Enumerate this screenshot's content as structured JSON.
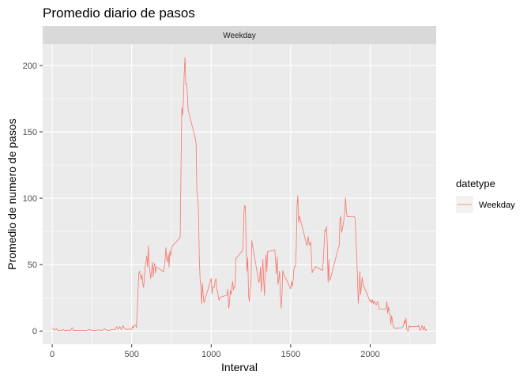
{
  "chart_data": {
    "type": "line",
    "title": "Promedio diario de pasos",
    "facet_label": "Weekday",
    "xlabel": "Interval",
    "ylabel": "Promedio de numero de pasos",
    "xlim": [
      -60,
      2415
    ],
    "ylim": [
      -10,
      216
    ],
    "x_ticks": [
      0,
      500,
      1000,
      1500,
      2000
    ],
    "y_ticks": [
      0,
      50,
      100,
      150,
      200
    ],
    "grid": true,
    "legend": {
      "title": "datetype",
      "position": "right",
      "entries": [
        "Weekday"
      ]
    },
    "series": [
      {
        "name": "Weekday",
        "color": "#F8766D",
        "points": [
          [
            0,
            2.3
          ],
          [
            15,
            0.4
          ],
          [
            25,
            1.8
          ],
          [
            35,
            0.2
          ],
          [
            45,
            0.6
          ],
          [
            60,
            0.5
          ],
          [
            70,
            1.0
          ],
          [
            80,
            0.2
          ],
          [
            100,
            0.6
          ],
          [
            115,
            0.4
          ],
          [
            125,
            2.5
          ],
          [
            135,
            0.3
          ],
          [
            150,
            0.5
          ],
          [
            170,
            0.4
          ],
          [
            190,
            0.6
          ],
          [
            210,
            0.2
          ],
          [
            230,
            1.1
          ],
          [
            250,
            0.6
          ],
          [
            270,
            0.3
          ],
          [
            290,
            0.8
          ],
          [
            310,
            0.4
          ],
          [
            330,
            1.6
          ],
          [
            345,
            0.6
          ],
          [
            360,
            0.4
          ],
          [
            380,
            1.2
          ],
          [
            395,
            0.8
          ],
          [
            405,
            3.2
          ],
          [
            415,
            1.4
          ],
          [
            425,
            3.4
          ],
          [
            435,
            1.0
          ],
          [
            445,
            4.0
          ],
          [
            455,
            2.0
          ],
          [
            470,
            0.9
          ],
          [
            485,
            1.5
          ],
          [
            500,
            1.1
          ],
          [
            505,
            3.5
          ],
          [
            510,
            2.3
          ],
          [
            515,
            4.5
          ],
          [
            525,
            4.2
          ],
          [
            530,
            2.6
          ],
          [
            540,
            30.6
          ],
          [
            545,
            43.4
          ],
          [
            550,
            45.0
          ],
          [
            555,
            41.5
          ],
          [
            560,
            38.8
          ],
          [
            565,
            42.5
          ],
          [
            570,
            35.2
          ],
          [
            575,
            32.9
          ],
          [
            580,
            40.5
          ],
          [
            585,
            48.8
          ],
          [
            590,
            52.4
          ],
          [
            595,
            56.6
          ],
          [
            600,
            48.1
          ],
          [
            605,
            64.2
          ],
          [
            610,
            49.6
          ],
          [
            615,
            44.5
          ],
          [
            620,
            39.4
          ],
          [
            625,
            45.1
          ],
          [
            630,
            52.0
          ],
          [
            635,
            40.7
          ],
          [
            640,
            48.3
          ],
          [
            645,
            51.0
          ],
          [
            650,
            43.6
          ],
          [
            655,
            48.2
          ],
          [
            700,
            44.7
          ],
          [
            705,
            48.0
          ],
          [
            710,
            53.7
          ],
          [
            715,
            62.8
          ],
          [
            720,
            54.4
          ],
          [
            725,
            51.8
          ],
          [
            730,
            58.1
          ],
          [
            735,
            48.2
          ],
          [
            740,
            60.2
          ],
          [
            745,
            56.4
          ],
          [
            750,
            61.6
          ],
          [
            755,
            64.0
          ],
          [
            800,
            69.8
          ],
          [
            805,
            70.8
          ],
          [
            810,
            120.9
          ],
          [
            815,
            168.0
          ],
          [
            820,
            162.6
          ],
          [
            825,
            173.0
          ],
          [
            830,
            193.1
          ],
          [
            835,
            206.1
          ],
          [
            840,
            186.0
          ],
          [
            845,
            186.4
          ],
          [
            850,
            178.9
          ],
          [
            855,
            166.4
          ],
          [
            900,
            145.2
          ],
          [
            905,
            141.1
          ],
          [
            910,
            104.7
          ],
          [
            915,
            100.8
          ],
          [
            920,
            91.6
          ],
          [
            925,
            56.0
          ],
          [
            930,
            39.4
          ],
          [
            935,
            33.1
          ],
          [
            940,
            20.6
          ],
          [
            945,
            36.1
          ],
          [
            950,
            26.6
          ],
          [
            955,
            21.4
          ],
          [
            1000,
            39.7
          ],
          [
            1005,
            27.7
          ],
          [
            1010,
            33.3
          ],
          [
            1015,
            32.7
          ],
          [
            1020,
            33.1
          ],
          [
            1025,
            38.1
          ],
          [
            1030,
            39.4
          ],
          [
            1035,
            31.0
          ],
          [
            1040,
            30.0
          ],
          [
            1045,
            25.4
          ],
          [
            1050,
            23.0
          ],
          [
            1055,
            25.3
          ],
          [
            1100,
            27.0
          ],
          [
            1105,
            31.4
          ],
          [
            1110,
            17.1
          ],
          [
            1115,
            20.8
          ],
          [
            1120,
            30.6
          ],
          [
            1125,
            27.5
          ],
          [
            1130,
            33.2
          ],
          [
            1135,
            37.3
          ],
          [
            1140,
            31.0
          ],
          [
            1145,
            33.4
          ],
          [
            1150,
            33.3
          ],
          [
            1155,
            54.5
          ],
          [
            1200,
            61.0
          ],
          [
            1205,
            88.2
          ],
          [
            1210,
            94.4
          ],
          [
            1215,
            93.3
          ],
          [
            1220,
            62.5
          ],
          [
            1225,
            45.1
          ],
          [
            1230,
            55.2
          ],
          [
            1235,
            26.4
          ],
          [
            1240,
            22.3
          ],
          [
            1245,
            30.1
          ],
          [
            1250,
            36.4
          ],
          [
            1255,
            68.1
          ],
          [
            1300,
            36.5
          ],
          [
            1305,
            38.9
          ],
          [
            1310,
            47.9
          ],
          [
            1315,
            29.5
          ],
          [
            1320,
            42.4
          ],
          [
            1325,
            54.1
          ],
          [
            1330,
            38.5
          ],
          [
            1335,
            26.7
          ],
          [
            1340,
            48.8
          ],
          [
            1345,
            57.6
          ],
          [
            1350,
            44.4
          ],
          [
            1355,
            59.8
          ],
          [
            1400,
            61.0
          ],
          [
            1405,
            52.5
          ],
          [
            1410,
            43.1
          ],
          [
            1415,
            55.7
          ],
          [
            1420,
            35.0
          ],
          [
            1425,
            39.0
          ],
          [
            1430,
            45.1
          ],
          [
            1435,
            27.7
          ],
          [
            1440,
            17.2
          ],
          [
            1445,
            26.4
          ],
          [
            1450,
            45.6
          ],
          [
            1455,
            43.1
          ],
          [
            1500,
            31.7
          ],
          [
            1505,
            37.5
          ],
          [
            1510,
            33.7
          ],
          [
            1515,
            37.8
          ],
          [
            1520,
            46.3
          ],
          [
            1525,
            48.7
          ],
          [
            1530,
            48.6
          ],
          [
            1535,
            62.5
          ],
          [
            1540,
            95.2
          ],
          [
            1545,
            101.9
          ],
          [
            1550,
            81.5
          ],
          [
            1555,
            86.7
          ],
          [
            1600,
            65.3
          ],
          [
            1605,
            64.5
          ],
          [
            1610,
            71.2
          ],
          [
            1615,
            66.1
          ],
          [
            1620,
            64.8
          ],
          [
            1625,
            67.2
          ],
          [
            1630,
            57.2
          ],
          [
            1635,
            43.8
          ],
          [
            1640,
            45.6
          ],
          [
            1645,
            45.8
          ],
          [
            1650,
            46.7
          ],
          [
            1655,
            48.5
          ],
          [
            1700,
            45.6
          ],
          [
            1705,
            52.7
          ],
          [
            1710,
            65.0
          ],
          [
            1715,
            76.2
          ],
          [
            1720,
            75.2
          ],
          [
            1725,
            78.6
          ],
          [
            1730,
            66.2
          ],
          [
            1735,
            36.6
          ],
          [
            1740,
            54.1
          ],
          [
            1745,
            38.0
          ],
          [
            1750,
            39.7
          ],
          [
            1755,
            41.5
          ],
          [
            1800,
            62.9
          ],
          [
            1805,
            63.9
          ],
          [
            1810,
            83.9
          ],
          [
            1815,
            86.4
          ],
          [
            1820,
            74.2
          ],
          [
            1825,
            76.7
          ],
          [
            1830,
            80.1
          ],
          [
            1835,
            84.4
          ],
          [
            1840,
            90.6
          ],
          [
            1845,
            100.5
          ],
          [
            1850,
            90.2
          ],
          [
            1855,
            86.0
          ],
          [
            1900,
            86.2
          ],
          [
            1905,
            84.3
          ],
          [
            1910,
            70.9
          ],
          [
            1915,
            57.2
          ],
          [
            1920,
            40.9
          ],
          [
            1925,
            20.8
          ],
          [
            1930,
            29.4
          ],
          [
            1935,
            45.0
          ],
          [
            1940,
            27.4
          ],
          [
            1945,
            34.4
          ],
          [
            1950,
            40.4
          ],
          [
            1955,
            35.1
          ],
          [
            2000,
            22.2
          ],
          [
            2005,
            23.5
          ],
          [
            2010,
            21.1
          ],
          [
            2015,
            23.5
          ],
          [
            2020,
            20.4
          ],
          [
            2025,
            22.5
          ],
          [
            2030,
            22.1
          ],
          [
            2035,
            19.8
          ],
          [
            2040,
            19.7
          ],
          [
            2045,
            22.3
          ],
          [
            2050,
            21.5
          ],
          [
            2055,
            16.7
          ],
          [
            2100,
            16.4
          ],
          [
            2105,
            22.0
          ],
          [
            2110,
            13.2
          ],
          [
            2115,
            18.2
          ],
          [
            2120,
            14.6
          ],
          [
            2125,
            12.9
          ],
          [
            2130,
            4.9
          ],
          [
            2135,
            11.4
          ],
          [
            2140,
            7.9
          ],
          [
            2145,
            3.2
          ],
          [
            2150,
            2.7
          ],
          [
            2155,
            2.0
          ],
          [
            2200,
            2.5
          ],
          [
            2205,
            3.1
          ],
          [
            2210,
            4.2
          ],
          [
            2215,
            7.9
          ],
          [
            2220,
            5.5
          ],
          [
            2225,
            9.6
          ],
          [
            2230,
            1.1
          ],
          [
            2235,
            0.4
          ],
          [
            2240,
            0.0
          ],
          [
            2245,
            4.3
          ],
          [
            2250,
            2.7
          ],
          [
            2255,
            3.4
          ],
          [
            2300,
            3.3
          ],
          [
            2305,
            4.4
          ],
          [
            2310,
            0.8
          ],
          [
            2315,
            0.4
          ],
          [
            2320,
            1.5
          ],
          [
            2325,
            4.1
          ],
          [
            2330,
            2.8
          ],
          [
            2335,
            0.5
          ],
          [
            2340,
            3.5
          ],
          [
            2345,
            1.5
          ],
          [
            2350,
            0.2
          ],
          [
            2355,
            1.3
          ]
        ]
      }
    ]
  }
}
